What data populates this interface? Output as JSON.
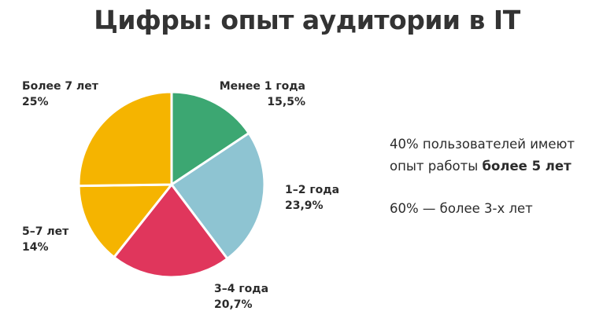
{
  "title": "Цифры: опыт аудитории в IT",
  "chart_data": {
    "type": "pie",
    "start_angle_deg": 0,
    "direction": "clockwise",
    "slices": [
      {
        "label": "Менее 1 года",
        "value": 15.5,
        "value_label": "15,5%",
        "color": "#3ca772"
      },
      {
        "label": "1–2 года",
        "value": 23.9,
        "value_label": "23,9%",
        "color": "#8ec4d2"
      },
      {
        "label": "3–4 года",
        "value": 20.7,
        "value_label": "20,7%",
        "color": "#e0365c"
      },
      {
        "label": "5–7 лет",
        "value": 14,
        "value_label": "14%",
        "color": "#f5b400"
      },
      {
        "label": "Более 7 лет",
        "value": 25,
        "value_label": "25%",
        "color": "#f5b400"
      }
    ]
  },
  "notes": {
    "line1": "40% пользователей имеют",
    "line2_prefix": "опыт работы ",
    "line2_bold": "более 5 лет",
    "line3": "60% — более 3-х лет"
  }
}
